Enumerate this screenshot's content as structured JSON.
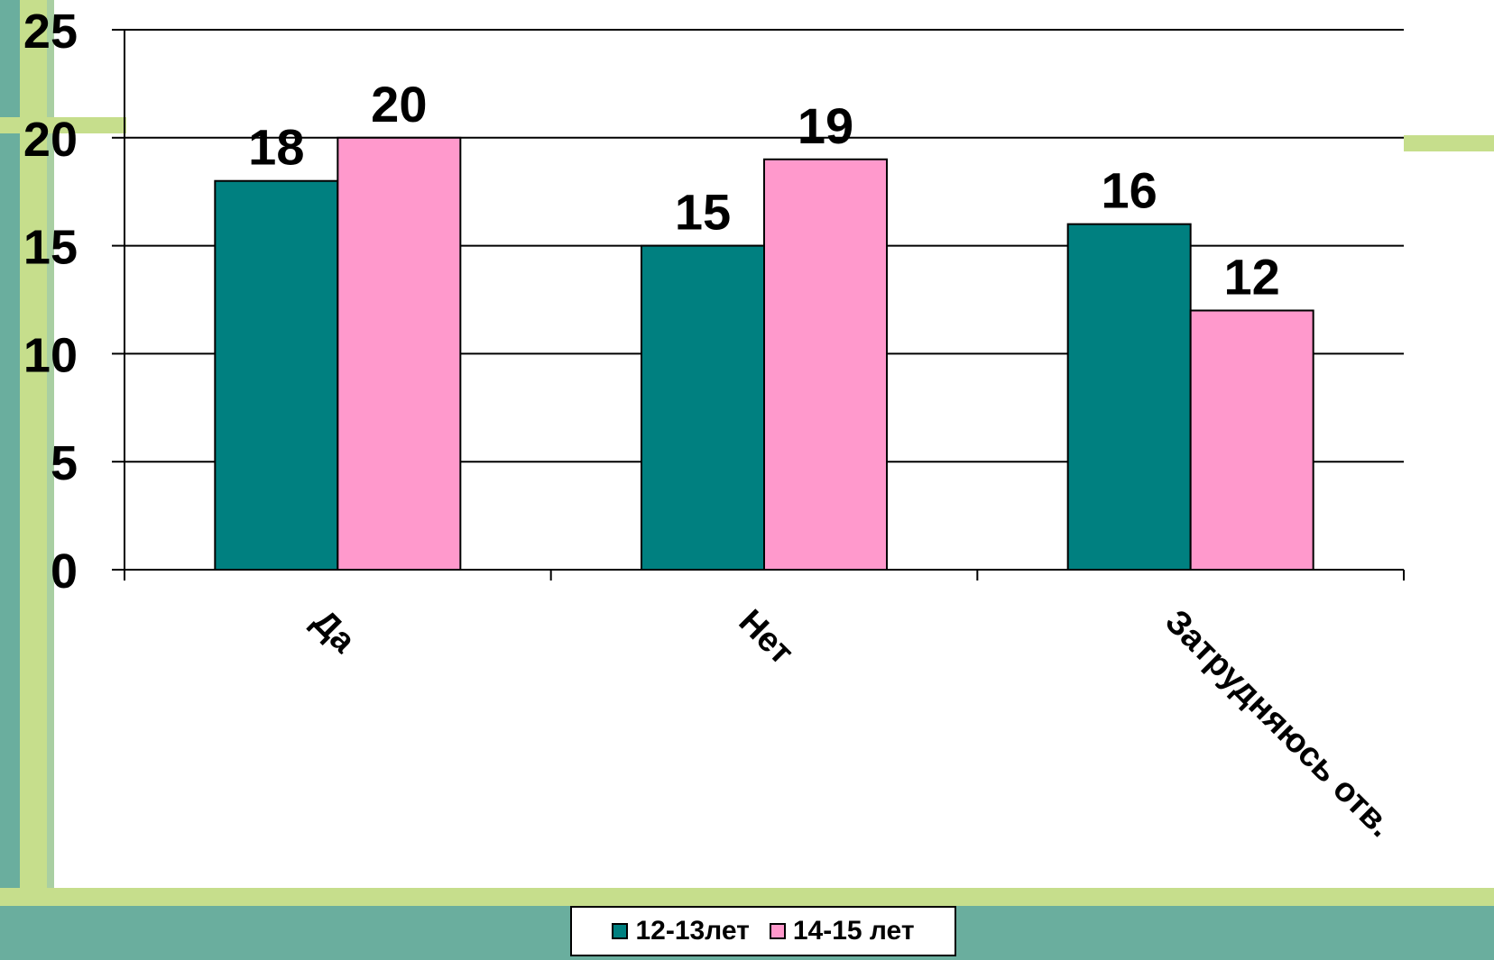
{
  "colors": {
    "series_1": "#008080",
    "series_2": "#FF99CC",
    "frame_green": "#C6DE8C",
    "frame_teal": "#6AAE9E"
  },
  "chart_data": {
    "type": "bar",
    "title": "",
    "xlabel": "",
    "ylabel": "",
    "ylim": [
      0,
      25
    ],
    "yticks": [
      "0",
      "5",
      "10",
      "15",
      "20",
      "25"
    ],
    "grid": true,
    "legend_position": "bottom",
    "categories": [
      "Да",
      "Нет",
      "Затрудняюсь отв."
    ],
    "series": [
      {
        "name": "12-13лет",
        "values": [
          18,
          15,
          16
        ]
      },
      {
        "name": "14-15 лет",
        "values": [
          20,
          19,
          12
        ]
      }
    ]
  }
}
